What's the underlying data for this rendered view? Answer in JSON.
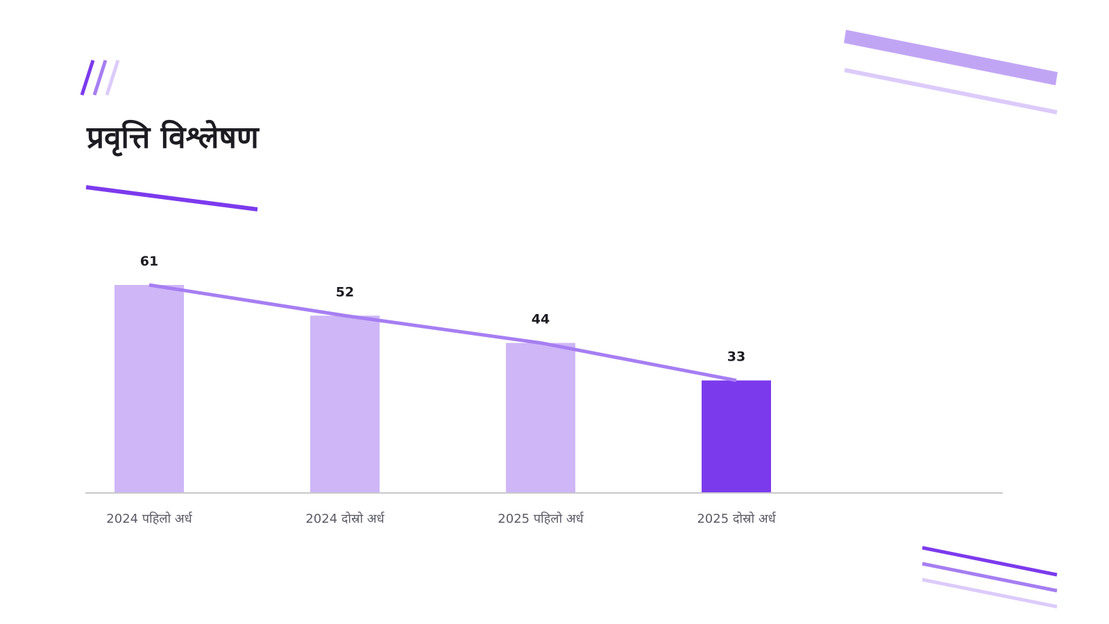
{
  "page": {
    "title": "प्रवृत्ति विश्लेषण"
  },
  "colors": {
    "accent": "#7c3aed",
    "accent_light": "#ceb6f7",
    "accent_mid": "#a67ef2",
    "accent_pale": "#dccbfa",
    "title": "#1c1c22",
    "axis": "#c8c8cc",
    "tick_text": "#5b5b66"
  },
  "chart_data": {
    "type": "bar",
    "categories": [
      "2024 पहिलो अर्ध",
      "2024 दोस्रो अर्ध",
      "2025 पहिलो अर्ध",
      "2025 दोस्रो अर्ध"
    ],
    "values": [
      61,
      52,
      44,
      33
    ],
    "highlight_index": 3,
    "trend_line": true,
    "data_labels": [
      "61",
      "52",
      "44",
      "33"
    ],
    "ylim": [
      0,
      61
    ],
    "grid": false,
    "title": "",
    "xlabel": "",
    "ylabel": ""
  }
}
